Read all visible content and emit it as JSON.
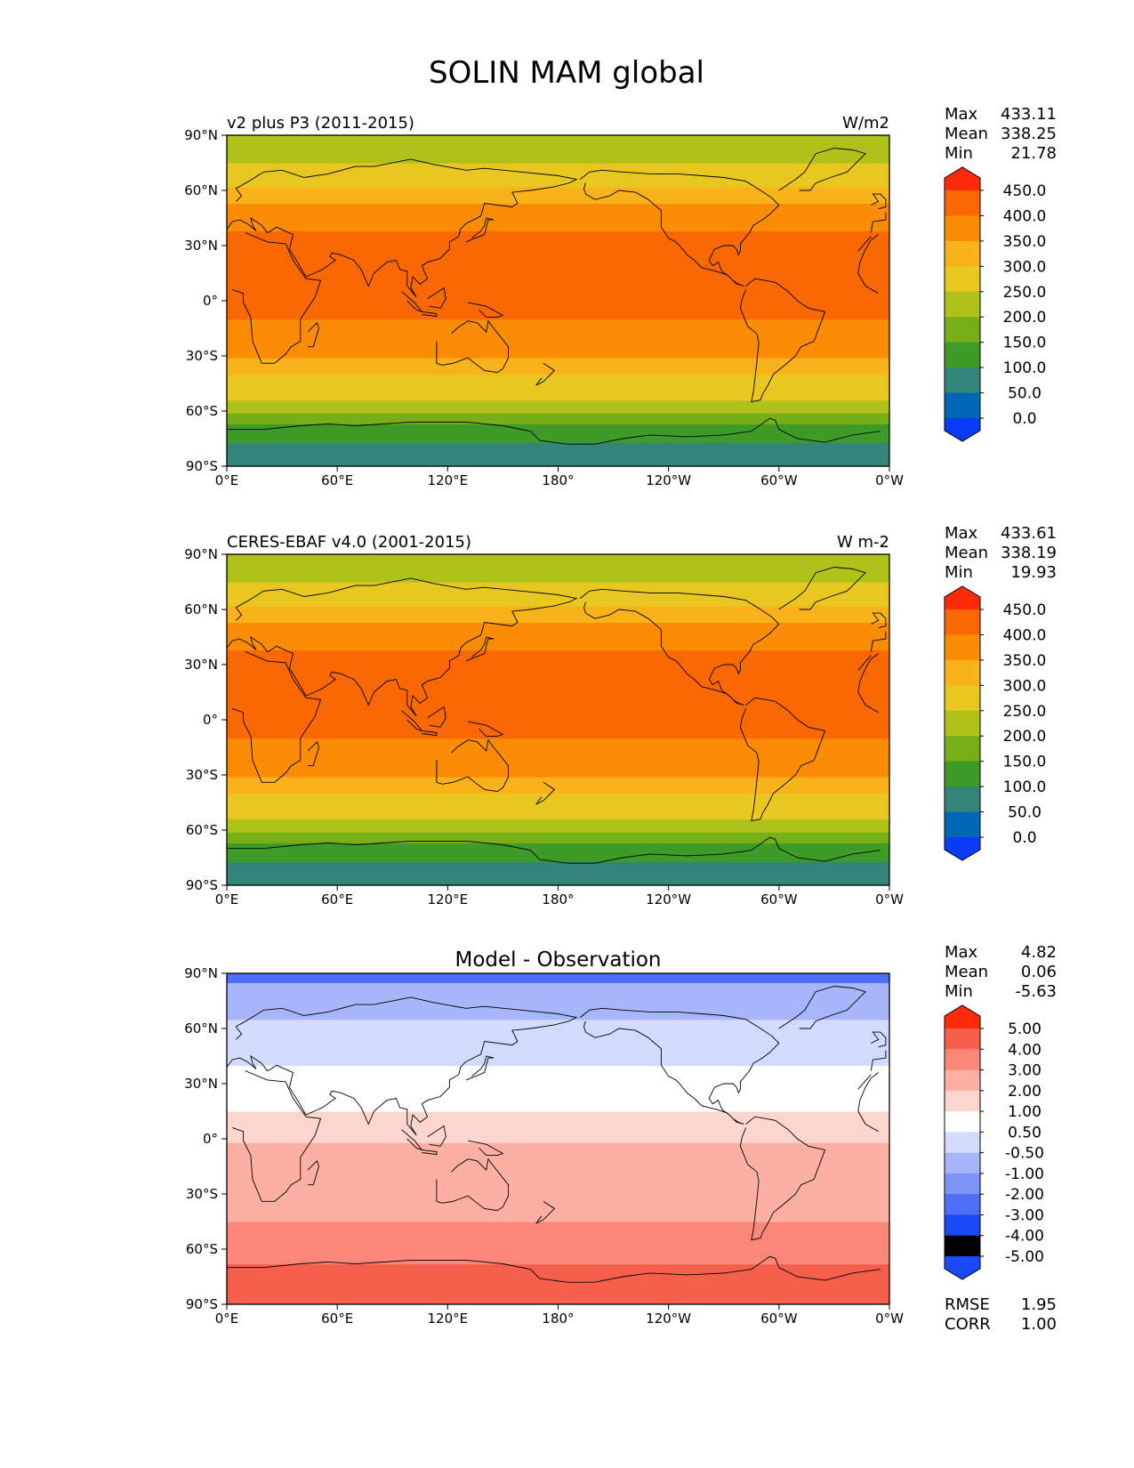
{
  "title": "SOLIN MAM global",
  "colors": {
    "solin_levels": [
      "#0a3cf5",
      "#0066b5",
      "#33857a",
      "#3e9b28",
      "#78af18",
      "#b0c21a",
      "#e8c820",
      "#f9b21a",
      "#fb8c06",
      "#fa6803",
      "#ff2a0a"
    ],
    "diff_levels": [
      "#1a4af5",
      "#4d6ff6",
      "#7e95f7",
      "#a7b6f9",
      "#d3dbfc",
      "#ffffff",
      "#fdd5cf",
      "#fcafa3",
      "#fa8777",
      "#f75f4d",
      "#ff2a0a"
    ],
    "land_outline": "#000000"
  },
  "x_ticks": [
    "0°E",
    "60°E",
    "120°E",
    "180°",
    "120°W",
    "60°W",
    "0°W"
  ],
  "y_ticks": [
    "90°N",
    "60°N",
    "30°N",
    "0°",
    "30°S",
    "60°S",
    "90°S"
  ],
  "panels": [
    {
      "id": "model",
      "left_title": "v2 plus P3 (2011-2015)",
      "center_title": "",
      "units": "W/m2",
      "stats": [
        {
          "label": "Max",
          "value": "433.11"
        },
        {
          "label": "Mean",
          "value": "338.25"
        },
        {
          "label": "Min",
          "value": "21.78"
        }
      ],
      "colorbar_ticks": [
        "450.0",
        "400.0",
        "350.0",
        "300.0",
        "250.0",
        "200.0",
        "150.0",
        "100.0",
        "50.0",
        "0.0"
      ],
      "footer_stats": []
    },
    {
      "id": "obs",
      "left_title": "CERES-EBAF v4.0 (2001-2015)",
      "center_title": "",
      "units": "W m-2",
      "stats": [
        {
          "label": "Max",
          "value": "433.61"
        },
        {
          "label": "Mean",
          "value": "338.19"
        },
        {
          "label": "Min",
          "value": "19.93"
        }
      ],
      "colorbar_ticks": [
        "450.0",
        "400.0",
        "350.0",
        "300.0",
        "250.0",
        "200.0",
        "150.0",
        "100.0",
        "50.0",
        "0.0"
      ],
      "footer_stats": []
    },
    {
      "id": "diff",
      "left_title": "",
      "center_title": "Model - Observation",
      "units": "",
      "stats": [
        {
          "label": "Max",
          "value": "4.82"
        },
        {
          "label": "Mean",
          "value": "0.06"
        },
        {
          "label": "Min",
          "value": "-5.63"
        }
      ],
      "colorbar_ticks": [
        "5.00",
        "4.00",
        "3.00",
        "2.00",
        "1.00",
        "0.50",
        "-0.50",
        "-1.00",
        "-2.00",
        "-3.00",
        "-4.00",
        "-5.00"
      ],
      "footer_stats": [
        {
          "label": "RMSE",
          "value": "1.95"
        },
        {
          "label": "CORR",
          "value": "1.00"
        }
      ]
    }
  ],
  "chart_data": [
    {
      "type": "heatmap",
      "title": "v2 plus P3 (2011-2015)",
      "units": "W/m2",
      "xlim": [
        0,
        360
      ],
      "ylim": [
        -90,
        90
      ],
      "x_tick_values": [
        0,
        60,
        120,
        180,
        240,
        300,
        360
      ],
      "y_tick_values": [
        90,
        60,
        30,
        0,
        -30,
        -60,
        -90
      ],
      "levels": [
        0,
        50,
        100,
        150,
        200,
        250,
        300,
        350,
        400,
        450
      ],
      "zonal_bands": [
        {
          "lat": [
            -90,
            -77
          ],
          "value": 75
        },
        {
          "lat": [
            -77,
            -67
          ],
          "value": 125
        },
        {
          "lat": [
            -67,
            -61
          ],
          "value": 175
        },
        {
          "lat": [
            -61,
            -54
          ],
          "value": 225
        },
        {
          "lat": [
            -54,
            -47
          ],
          "value": 275
        },
        {
          "lat": [
            -47,
            -40
          ],
          "value": 275
        },
        {
          "lat": [
            -40,
            -31
          ],
          "value": 325
        },
        {
          "lat": [
            -31,
            -23
          ],
          "value": 375
        },
        {
          "lat": [
            -23,
            -10
          ],
          "value": 375
        },
        {
          "lat": [
            -10,
            38
          ],
          "value": 425
        },
        {
          "lat": [
            38,
            53
          ],
          "value": 375
        },
        {
          "lat": [
            53,
            62
          ],
          "value": 325
        },
        {
          "lat": [
            62,
            75
          ],
          "value": 275
        },
        {
          "lat": [
            75,
            90
          ],
          "value": 225
        }
      ],
      "max": 433.11,
      "mean": 338.25,
      "min": 21.78
    },
    {
      "type": "heatmap",
      "title": "CERES-EBAF v4.0 (2001-2015)",
      "units": "W m-2",
      "xlim": [
        0,
        360
      ],
      "ylim": [
        -90,
        90
      ],
      "x_tick_values": [
        0,
        60,
        120,
        180,
        240,
        300,
        360
      ],
      "y_tick_values": [
        90,
        60,
        30,
        0,
        -30,
        -60,
        -90
      ],
      "levels": [
        0,
        50,
        100,
        150,
        200,
        250,
        300,
        350,
        400,
        450
      ],
      "zonal_bands": [
        {
          "lat": [
            -90,
            -77
          ],
          "value": 75
        },
        {
          "lat": [
            -77,
            -67
          ],
          "value": 125
        },
        {
          "lat": [
            -67,
            -61
          ],
          "value": 175
        },
        {
          "lat": [
            -61,
            -54
          ],
          "value": 225
        },
        {
          "lat": [
            -54,
            -47
          ],
          "value": 275
        },
        {
          "lat": [
            -47,
            -40
          ],
          "value": 275
        },
        {
          "lat": [
            -40,
            -31
          ],
          "value": 325
        },
        {
          "lat": [
            -31,
            -23
          ],
          "value": 375
        },
        {
          "lat": [
            -23,
            -10
          ],
          "value": 375
        },
        {
          "lat": [
            -10,
            38
          ],
          "value": 425
        },
        {
          "lat": [
            38,
            53
          ],
          "value": 375
        },
        {
          "lat": [
            53,
            62
          ],
          "value": 325
        },
        {
          "lat": [
            62,
            75
          ],
          "value": 275
        },
        {
          "lat": [
            75,
            90
          ],
          "value": 225
        }
      ],
      "max": 433.61,
      "mean": 338.19,
      "min": 19.93
    },
    {
      "type": "heatmap",
      "title": "Model - Observation",
      "xlim": [
        0,
        360
      ],
      "ylim": [
        -90,
        90
      ],
      "x_tick_values": [
        0,
        60,
        120,
        180,
        240,
        300,
        360
      ],
      "y_tick_values": [
        90,
        60,
        30,
        0,
        -30,
        -60,
        -90
      ],
      "levels": [
        -5,
        -4,
        -3,
        -2,
        -1,
        -0.5,
        0.5,
        1,
        2,
        3,
        4,
        5
      ],
      "zonal_bands": [
        {
          "lat": [
            -90,
            -68
          ],
          "value": 2.5
        },
        {
          "lat": [
            -68,
            -45
          ],
          "value": 1.5
        },
        {
          "lat": [
            -45,
            -20
          ],
          "value": 0.75
        },
        {
          "lat": [
            -20,
            -2
          ],
          "value": 0.75
        },
        {
          "lat": [
            -2,
            15
          ],
          "value": 0
        },
        {
          "lat": [
            15,
            40
          ],
          "value": -0.75
        },
        {
          "lat": [
            40,
            65
          ],
          "value": -1.5
        },
        {
          "lat": [
            65,
            85
          ],
          "value": -2.5
        },
        {
          "lat": [
            85,
            90
          ],
          "value": -4.5
        }
      ],
      "max": 4.82,
      "mean": 0.06,
      "min": -5.63,
      "rmse": 1.95,
      "corr": 1.0
    }
  ]
}
